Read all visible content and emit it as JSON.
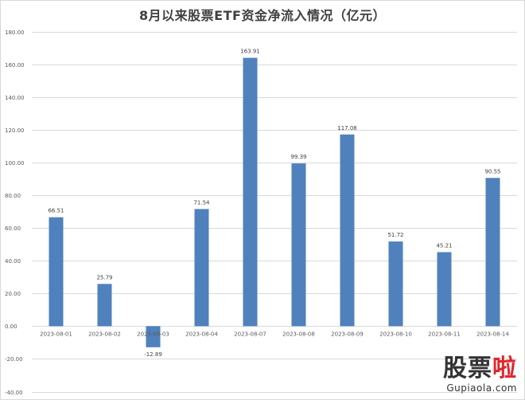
{
  "chart_data": {
    "type": "bar",
    "title": "8月以来股票ETF资金净流入情况（亿元）",
    "categories": [
      "2023-08-01",
      "2023-08-02",
      "2023-08-03",
      "2023-08-04",
      "2023-08-07",
      "2023-08-08",
      "2023-08-09",
      "2023-08-10",
      "2023-08-11",
      "2023-08-14"
    ],
    "values": [
      66.51,
      25.79,
      -12.89,
      71.54,
      163.91,
      99.39,
      117.08,
      51.72,
      45.21,
      90.55
    ],
    "value_labels": [
      "66.51",
      "25.79",
      "-12.89",
      "71.54",
      "163.91",
      "99.39",
      "117.08",
      "51.72",
      "45.21",
      "90.55"
    ],
    "ylim": [
      -40,
      180
    ],
    "yticks": [
      -40,
      -20,
      0,
      20,
      40,
      60,
      80,
      100,
      120,
      140,
      160,
      180
    ],
    "ytick_labels": [
      "-40.00",
      "-20.00",
      "0.00",
      "20.00",
      "40.00",
      "60.00",
      "80.00",
      "100.00",
      "120.00",
      "140.00",
      "160.00",
      "180.00"
    ],
    "grid": true,
    "bar_color": "#4f81bd",
    "grid_color": "#d9d9d9",
    "xlabel": "",
    "ylabel": ""
  },
  "watermark": {
    "cn_main": "股票",
    "cn_accent": "啦",
    "url": "Gupiaola.com"
  }
}
